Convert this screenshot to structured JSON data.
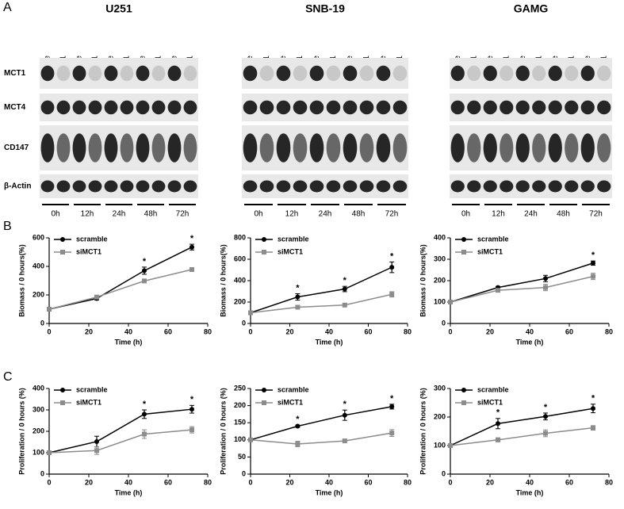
{
  "panel_labels": [
    "A",
    "B",
    "C"
  ],
  "blots": {
    "rows": [
      "MCT1",
      "MCT4",
      "CD147",
      "β-Actin"
    ],
    "groups": [
      {
        "title": "U251",
        "lanes": [
          "scramble",
          "siMCT1",
          "scramble",
          "siMCT1",
          "scramble",
          "siMCT1",
          "scramble",
          "siMCT1",
          "scramble",
          "siMCT1"
        ],
        "times": [
          "0h",
          "12h",
          "24h",
          "48h",
          "72h"
        ]
      },
      {
        "title": "SNB-19",
        "lanes": [
          "scramble",
          "siMCT1",
          "scramble",
          "siMCT1",
          "scramble",
          "siMCT1",
          "scramble",
          "siMCT1",
          "scramble",
          "siMCT1"
        ],
        "times": [
          "0h",
          "12h",
          "24h",
          "48h",
          "72h"
        ]
      },
      {
        "title": "GAMG",
        "lanes": [
          "scramble",
          "siMCT1",
          "scramble",
          "siMCT1",
          "scramble",
          "siMCT1",
          "scramble",
          "siMCT1",
          "scramble",
          "siMCT1"
        ],
        "times": [
          "0h",
          "12h",
          "24h",
          "48h",
          "72h"
        ]
      }
    ]
  },
  "chart_data": [
    {
      "type": "line",
      "xlabel": "Time (h)",
      "ylabel": "Biomass / 0 hours(%)",
      "x": [
        0,
        24,
        48,
        72
      ],
      "xlim": [
        0,
        80
      ],
      "xticks": [
        0,
        20,
        40,
        60,
        80
      ],
      "ylim": [
        0,
        600
      ],
      "yticks": [
        0,
        200,
        400,
        600
      ],
      "legend": "upper left",
      "series": [
        {
          "name": "scramble",
          "color": "#000000",
          "marker": "circle",
          "values": [
            100,
            175,
            370,
            535
          ],
          "errors": [
            0,
            10,
            25,
            20
          ]
        },
        {
          "name": "siMCT1",
          "color": "#8c8c8c",
          "marker": "square",
          "values": [
            100,
            185,
            298,
            378
          ],
          "errors": [
            0,
            5,
            5,
            5
          ]
        }
      ],
      "annotations": [
        {
          "text": "*",
          "x": 48
        },
        {
          "text": "*",
          "x": 72
        }
      ]
    },
    {
      "type": "line",
      "xlabel": "Time (h)",
      "ylabel": "Biomass / 0 hours(%)",
      "x": [
        0,
        24,
        48,
        72
      ],
      "xlim": [
        0,
        80
      ],
      "xticks": [
        0,
        20,
        40,
        60,
        80
      ],
      "ylim": [
        0,
        800
      ],
      "yticks": [
        0,
        200,
        400,
        600,
        800
      ],
      "legend": "upper left",
      "series": [
        {
          "name": "scramble",
          "color": "#000000",
          "marker": "circle",
          "values": [
            100,
            248,
            322,
            525
          ],
          "errors": [
            0,
            30,
            25,
            50
          ]
        },
        {
          "name": "siMCT1",
          "color": "#8c8c8c",
          "marker": "square",
          "values": [
            100,
            152,
            172,
            272
          ],
          "errors": [
            0,
            5,
            8,
            25
          ]
        }
      ],
      "annotations": [
        {
          "text": "*",
          "x": 24
        },
        {
          "text": "*",
          "x": 48
        },
        {
          "text": "*",
          "x": 72
        }
      ]
    },
    {
      "type": "line",
      "xlabel": "Time (h)",
      "ylabel": "Biomass / 0 hours(%)",
      "x": [
        0,
        24,
        48,
        72
      ],
      "xlim": [
        0,
        80
      ],
      "xticks": [
        0,
        20,
        40,
        60,
        80
      ],
      "ylim": [
        0,
        400
      ],
      "yticks": [
        0,
        100,
        200,
        300,
        400
      ],
      "legend": "upper left",
      "series": [
        {
          "name": "scramble",
          "color": "#000000",
          "marker": "circle",
          "values": [
            100,
            168,
            210,
            282
          ],
          "errors": [
            0,
            5,
            15,
            10
          ]
        },
        {
          "name": "siMCT1",
          "color": "#8c8c8c",
          "marker": "square",
          "values": [
            100,
            155,
            168,
            220
          ],
          "errors": [
            0,
            5,
            15,
            15
          ]
        }
      ],
      "annotations": [
        {
          "text": "*",
          "x": 72
        }
      ]
    },
    {
      "type": "line",
      "xlabel": "Time (h)",
      "ylabel": "Proliferation / 0 hours (%)",
      "x": [
        0,
        24,
        48,
        72
      ],
      "xlim": [
        0,
        80
      ],
      "xticks": [
        0,
        20,
        40,
        60,
        80
      ],
      "ylim": [
        0,
        400
      ],
      "yticks": [
        0,
        100,
        200,
        300,
        400
      ],
      "legend": "upper left",
      "series": [
        {
          "name": "scramble",
          "color": "#000000",
          "marker": "circle",
          "values": [
            100,
            152,
            280,
            303
          ],
          "errors": [
            0,
            25,
            20,
            18
          ]
        },
        {
          "name": "siMCT1",
          "color": "#8c8c8c",
          "marker": "square",
          "values": [
            100,
            110,
            187,
            207
          ],
          "errors": [
            0,
            18,
            20,
            15
          ]
        }
      ],
      "annotations": [
        {
          "text": "*",
          "x": 48
        },
        {
          "text": "*",
          "x": 72
        }
      ]
    },
    {
      "type": "line",
      "xlabel": "Time (h)",
      "ylabel": "Proliferation / 0 hours (%)",
      "x": [
        0,
        24,
        48,
        72
      ],
      "xlim": [
        0,
        80
      ],
      "xticks": [
        0,
        20,
        40,
        60,
        80
      ],
      "ylim": [
        0,
        250
      ],
      "yticks": [
        0,
        50,
        100,
        150,
        200,
        250
      ],
      "legend": "upper left",
      "series": [
        {
          "name": "scramble",
          "color": "#000000",
          "marker": "circle",
          "values": [
            100,
            140,
            172,
            197
          ],
          "errors": [
            0,
            3,
            15,
            7
          ]
        },
        {
          "name": "siMCT1",
          "color": "#8c8c8c",
          "marker": "square",
          "values": [
            100,
            88,
            97,
            120
          ],
          "errors": [
            0,
            8,
            3,
            10
          ]
        }
      ],
      "annotations": [
        {
          "text": "*",
          "x": 24
        },
        {
          "text": "*",
          "x": 48
        },
        {
          "text": "*",
          "x": 72
        }
      ]
    },
    {
      "type": "line",
      "xlabel": "Time (h)",
      "ylabel": "Proliferation / 0 hours (%)",
      "x": [
        0,
        24,
        48,
        72
      ],
      "xlim": [
        0,
        80
      ],
      "xticks": [
        0,
        20,
        40,
        60,
        80
      ],
      "ylim": [
        0,
        300
      ],
      "yticks": [
        0,
        100,
        200,
        300
      ],
      "legend": "upper left",
      "series": [
        {
          "name": "scramble",
          "color": "#000000",
          "marker": "circle",
          "values": [
            100,
            177,
            202,
            230
          ],
          "errors": [
            0,
            18,
            12,
            15
          ]
        },
        {
          "name": "siMCT1",
          "color": "#8c8c8c",
          "marker": "square",
          "values": [
            100,
            120,
            143,
            162
          ],
          "errors": [
            0,
            7,
            12,
            8
          ]
        }
      ],
      "annotations": [
        {
          "text": "*",
          "x": 24
        },
        {
          "text": "*",
          "x": 48
        },
        {
          "text": "*",
          "x": 72
        }
      ]
    }
  ]
}
